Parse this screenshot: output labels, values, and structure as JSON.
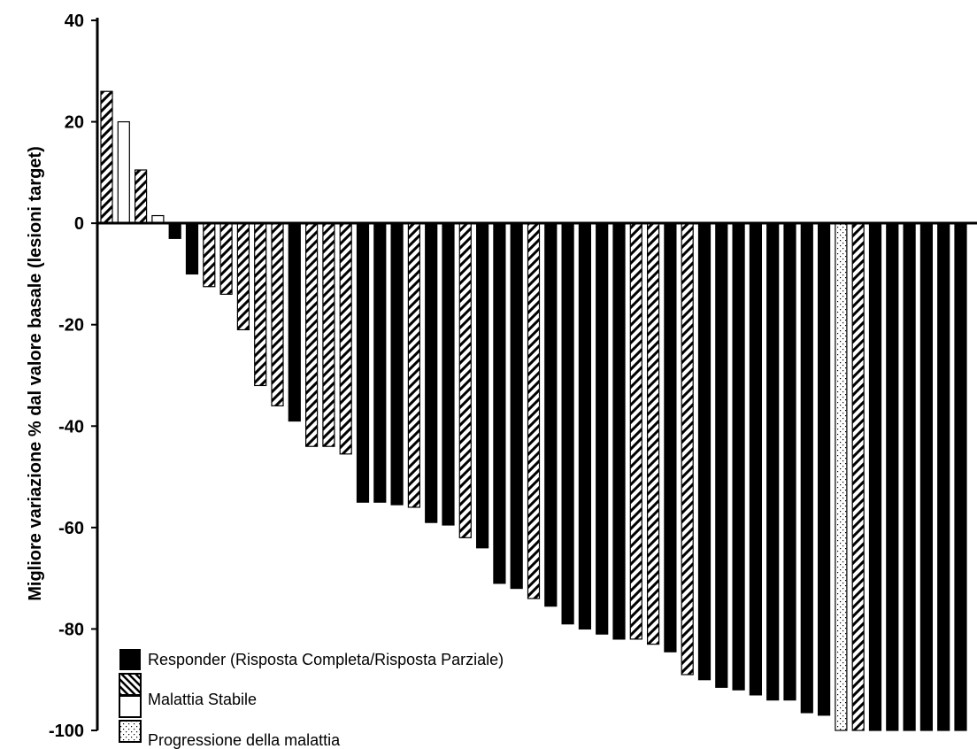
{
  "chart_data": {
    "type": "bar",
    "ylabel": "Migliore variazione % dal valore basale (lesioni target)",
    "xlabel": "",
    "ylim": [
      -100,
      40
    ],
    "yticks": [
      40,
      20,
      0,
      -20,
      -40,
      -60,
      -80,
      -100
    ],
    "legend_position": "bottom-left",
    "categories": {
      "responder": "Responder (Risposta Completa/Risposta Parziale)",
      "sd_hatched": "",
      "sd_white": "Malattia Stabile",
      "pd": "Progressione della malattia"
    },
    "colors": {
      "responder": "#000000",
      "hatch": "#000000",
      "white": "#ffffff",
      "dots": "#000000"
    },
    "bars": [
      {
        "value": 26,
        "category": "sd_hatched"
      },
      {
        "value": 20,
        "category": "sd_white"
      },
      {
        "value": 10.5,
        "category": "sd_hatched"
      },
      {
        "value": 1.5,
        "category": "sd_white"
      },
      {
        "value": -3,
        "category": "responder"
      },
      {
        "value": -10,
        "category": "responder"
      },
      {
        "value": -12.5,
        "category": "sd_hatched"
      },
      {
        "value": -14,
        "category": "sd_hatched"
      },
      {
        "value": -21,
        "category": "sd_hatched"
      },
      {
        "value": -32,
        "category": "sd_hatched"
      },
      {
        "value": -36,
        "category": "sd_hatched"
      },
      {
        "value": -39,
        "category": "responder"
      },
      {
        "value": -44,
        "category": "sd_hatched"
      },
      {
        "value": -44,
        "category": "sd_hatched"
      },
      {
        "value": -45.5,
        "category": "sd_hatched"
      },
      {
        "value": -55,
        "category": "responder"
      },
      {
        "value": -55,
        "category": "responder"
      },
      {
        "value": -55.5,
        "category": "responder"
      },
      {
        "value": -56,
        "category": "sd_hatched"
      },
      {
        "value": -59,
        "category": "responder"
      },
      {
        "value": -59.5,
        "category": "responder"
      },
      {
        "value": -62,
        "category": "sd_hatched"
      },
      {
        "value": -64,
        "category": "responder"
      },
      {
        "value": -71,
        "category": "responder"
      },
      {
        "value": -72,
        "category": "responder"
      },
      {
        "value": -74,
        "category": "sd_hatched"
      },
      {
        "value": -75.5,
        "category": "responder"
      },
      {
        "value": -79,
        "category": "responder"
      },
      {
        "value": -80,
        "category": "responder"
      },
      {
        "value": -81,
        "category": "responder"
      },
      {
        "value": -82,
        "category": "responder"
      },
      {
        "value": -82,
        "category": "sd_hatched"
      },
      {
        "value": -83,
        "category": "sd_hatched"
      },
      {
        "value": -84.5,
        "category": "responder"
      },
      {
        "value": -89,
        "category": "sd_hatched"
      },
      {
        "value": -90,
        "category": "responder"
      },
      {
        "value": -91.5,
        "category": "responder"
      },
      {
        "value": -92,
        "category": "responder"
      },
      {
        "value": -93,
        "category": "responder"
      },
      {
        "value": -94,
        "category": "responder"
      },
      {
        "value": -94,
        "category": "responder"
      },
      {
        "value": -96.5,
        "category": "responder"
      },
      {
        "value": -97,
        "category": "responder"
      },
      {
        "value": -100,
        "category": "pd"
      },
      {
        "value": -100,
        "category": "sd_hatched"
      },
      {
        "value": -100,
        "category": "responder"
      },
      {
        "value": -100,
        "category": "responder"
      },
      {
        "value": -100,
        "category": "responder"
      },
      {
        "value": -100,
        "category": "responder"
      },
      {
        "value": -100,
        "category": "responder"
      },
      {
        "value": -100,
        "category": "responder"
      }
    ]
  }
}
